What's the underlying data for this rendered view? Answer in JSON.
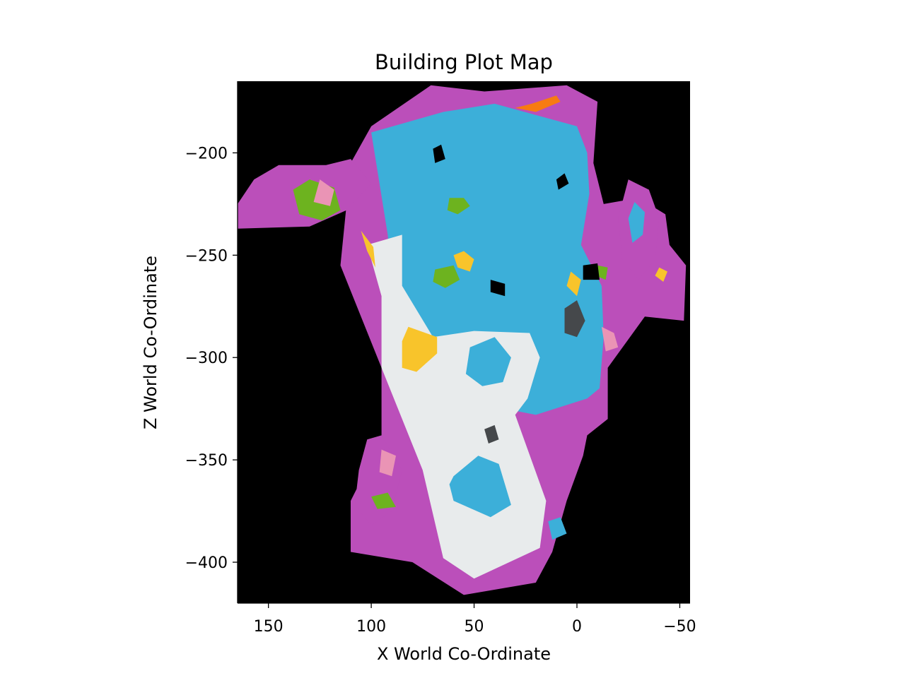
{
  "chart_data": {
    "type": "heatmap",
    "title": "Building Plot Map",
    "xlabel": "X World Co-Ordinate",
    "ylabel": "Z World Co-Ordinate",
    "xlim": [
      165,
      -55
    ],
    "ylim": [
      -420,
      -165
    ],
    "x_inverted": true,
    "grid": false,
    "legend": "none",
    "background_color": "#000000",
    "xticks": [
      {
        "value": 150,
        "label": "150"
      },
      {
        "value": 100,
        "label": "100"
      },
      {
        "value": 50,
        "label": "50"
      },
      {
        "value": 0,
        "label": "0"
      },
      {
        "value": -50,
        "label": "−50"
      }
    ],
    "yticks": [
      {
        "value": -200,
        "label": "−200"
      },
      {
        "value": -250,
        "label": "−250"
      },
      {
        "value": -300,
        "label": "−300"
      },
      {
        "value": -350,
        "label": "−350"
      },
      {
        "value": -400,
        "label": "−400"
      }
    ],
    "categories": [
      {
        "id": "outer-border",
        "color": "#bb4fba"
      },
      {
        "id": "plot-blue",
        "color": "#3cafd9"
      },
      {
        "id": "plot-light-grey",
        "color": "#e8ebec"
      },
      {
        "id": "plot-yellow",
        "color": "#f8c42b"
      },
      {
        "id": "plot-green",
        "color": "#6db31f"
      },
      {
        "id": "plot-pink",
        "color": "#ea94b5"
      },
      {
        "id": "plot-dark-grey",
        "color": "#45484b"
      },
      {
        "id": "plot-orange",
        "color": "#f77b12"
      }
    ],
    "regions": [
      {
        "category": "outer-border",
        "points": [
          [
            71,
            -167
          ],
          [
            45,
            -170
          ],
          [
            5,
            -167
          ],
          [
            -10,
            -175
          ],
          [
            -8,
            -205
          ],
          [
            -13,
            -225
          ],
          [
            -30,
            -222
          ],
          [
            -43,
            -230
          ],
          [
            -45,
            -245
          ],
          [
            -53,
            -255
          ],
          [
            -52,
            -282
          ],
          [
            -33,
            -280
          ],
          [
            -15,
            -305
          ],
          [
            -15,
            -330
          ],
          [
            -5,
            -338
          ],
          [
            -3,
            -348
          ],
          [
            5,
            -370
          ],
          [
            12,
            -395
          ],
          [
            20,
            -410
          ],
          [
            55,
            -416
          ],
          [
            80,
            -400
          ],
          [
            110,
            -395
          ],
          [
            110,
            -370
          ],
          [
            95,
            -340
          ],
          [
            95,
            -305
          ],
          [
            115,
            -255
          ],
          [
            110,
            -205
          ],
          [
            100,
            -187
          ]
        ]
      },
      {
        "category": "outer-border",
        "points": [
          [
            165,
            -237
          ],
          [
            130,
            -236
          ],
          [
            112,
            -228
          ],
          [
            100,
            -215
          ],
          [
            110,
            -203
          ],
          [
            122,
            -206
          ],
          [
            145,
            -206
          ],
          [
            157,
            -213
          ],
          [
            165,
            -225
          ]
        ]
      },
      {
        "category": "plot-blue",
        "points": [
          [
            100,
            -190
          ],
          [
            65,
            -180
          ],
          [
            40,
            -176
          ],
          [
            0,
            -187
          ],
          [
            -5,
            -200
          ],
          [
            -6,
            -220
          ],
          [
            -2,
            -245
          ],
          [
            -12,
            -265
          ],
          [
            -13,
            -290
          ],
          [
            -11,
            -315
          ],
          [
            -5,
            -320
          ],
          [
            20,
            -328
          ],
          [
            35,
            -325
          ],
          [
            52,
            -312
          ],
          [
            60,
            -300
          ],
          [
            85,
            -285
          ],
          [
            90,
            -262
          ],
          [
            92,
            -240
          ]
        ]
      },
      {
        "category": "plot-light-grey",
        "points": [
          [
            102,
            -245
          ],
          [
            85,
            -240
          ],
          [
            85,
            -265
          ],
          [
            70,
            -290
          ],
          [
            50,
            -287
          ],
          [
            23,
            -288
          ],
          [
            18,
            -300
          ],
          [
            24,
            -320
          ],
          [
            30,
            -328
          ],
          [
            15,
            -370
          ],
          [
            18,
            -393
          ],
          [
            50,
            -408
          ],
          [
            65,
            -398
          ],
          [
            75,
            -355
          ],
          [
            95,
            -305
          ],
          [
            95,
            -270
          ]
        ]
      },
      {
        "category": "plot-blue",
        "points": [
          [
            60,
            -358
          ],
          [
            48,
            -348
          ],
          [
            38,
            -352
          ],
          [
            32,
            -372
          ],
          [
            42,
            -378
          ],
          [
            60,
            -370
          ],
          [
            62,
            -362
          ]
        ]
      },
      {
        "category": "plot-blue",
        "points": [
          [
            40,
            -290
          ],
          [
            32,
            -300
          ],
          [
            36,
            -312
          ],
          [
            46,
            -314
          ],
          [
            54,
            -308
          ],
          [
            52,
            -295
          ]
        ]
      },
      {
        "category": "plot-blue",
        "points": [
          [
            14,
            -380
          ],
          [
            8,
            -378
          ],
          [
            5,
            -386
          ],
          [
            12,
            -389
          ]
        ]
      },
      {
        "category": "plot-yellow",
        "points": [
          [
            82,
            -285
          ],
          [
            68,
            -290
          ],
          [
            68,
            -298
          ],
          [
            78,
            -307
          ],
          [
            85,
            -305
          ],
          [
            85,
            -292
          ]
        ]
      },
      {
        "category": "plot-yellow",
        "points": [
          [
            105,
            -238
          ],
          [
            102,
            -248
          ],
          [
            98,
            -256
          ],
          [
            99,
            -246
          ]
        ]
      },
      {
        "category": "plot-yellow",
        "points": [
          [
            55,
            -248
          ],
          [
            50,
            -252
          ],
          [
            52,
            -258
          ],
          [
            58,
            -256
          ],
          [
            60,
            -250
          ]
        ]
      },
      {
        "category": "plot-yellow",
        "points": [
          [
            3,
            -258
          ],
          [
            -2,
            -262
          ],
          [
            0,
            -270
          ],
          [
            5,
            -265
          ]
        ]
      },
      {
        "category": "plot-green",
        "points": [
          [
            69,
            -257
          ],
          [
            60,
            -255
          ],
          [
            57,
            -262
          ],
          [
            64,
            -266
          ],
          [
            70,
            -263
          ]
        ]
      },
      {
        "category": "plot-green",
        "points": [
          [
            62,
            -222
          ],
          [
            55,
            -222
          ],
          [
            52,
            -226
          ],
          [
            58,
            -230
          ],
          [
            63,
            -228
          ]
        ]
      },
      {
        "category": "plot-green",
        "points": [
          [
            138,
            -218
          ],
          [
            130,
            -213
          ],
          [
            118,
            -217
          ],
          [
            115,
            -228
          ],
          [
            124,
            -233
          ],
          [
            135,
            -230
          ]
        ]
      },
      {
        "category": "plot-pink",
        "points": [
          [
            125,
            -213
          ],
          [
            118,
            -218
          ],
          [
            120,
            -226
          ],
          [
            128,
            -224
          ]
        ]
      },
      {
        "category": "plot-dark-grey",
        "points": [
          [
            6,
            -276
          ],
          [
            0,
            -272
          ],
          [
            -4,
            -282
          ],
          [
            0,
            -290
          ],
          [
            6,
            -288
          ]
        ]
      },
      {
        "category": "plot-dark-grey",
        "points": [
          [
            45,
            -335
          ],
          [
            40,
            -333
          ],
          [
            38,
            -340
          ],
          [
            43,
            -342
          ]
        ]
      },
      {
        "category": "plot-orange",
        "points": [
          [
            30,
            -178
          ],
          [
            22,
            -176
          ],
          [
            10,
            -172
          ],
          [
            8,
            -175
          ],
          [
            20,
            -180
          ]
        ]
      },
      {
        "category": "outer-border",
        "points": [
          [
            102,
            -340
          ],
          [
            95,
            -338
          ],
          [
            85,
            -355
          ],
          [
            90,
            -375
          ],
          [
            100,
            -382
          ],
          [
            108,
            -372
          ],
          [
            106,
            -355
          ]
        ]
      },
      {
        "category": "plot-pink",
        "points": [
          [
            95,
            -345
          ],
          [
            88,
            -348
          ],
          [
            90,
            -358
          ],
          [
            96,
            -356
          ]
        ]
      },
      {
        "category": "plot-green",
        "points": [
          [
            100,
            -368
          ],
          [
            92,
            -366
          ],
          [
            88,
            -373
          ],
          [
            97,
            -374
          ]
        ]
      },
      {
        "category": "outer-border",
        "points": [
          [
            -25,
            -213
          ],
          [
            -35,
            -218
          ],
          [
            -40,
            -232
          ],
          [
            -38,
            -252
          ],
          [
            -30,
            -262
          ],
          [
            -22,
            -252
          ],
          [
            -20,
            -232
          ]
        ]
      },
      {
        "category": "plot-blue",
        "points": [
          [
            -28,
            -224
          ],
          [
            -33,
            -229
          ],
          [
            -32,
            -240
          ],
          [
            -27,
            -244
          ],
          [
            -25,
            -232
          ]
        ]
      },
      {
        "category": "plot-pink",
        "points": [
          [
            -12,
            -285
          ],
          [
            -18,
            -288
          ],
          [
            -20,
            -295
          ],
          [
            -14,
            -297
          ]
        ]
      },
      {
        "category": "plot-green",
        "points": [
          [
            -10,
            -255
          ],
          [
            -15,
            -256
          ],
          [
            -14,
            -262
          ],
          [
            -9,
            -260
          ]
        ]
      },
      {
        "category": "plot-yellow",
        "points": [
          [
            -40,
            -256
          ],
          [
            -44,
            -258
          ],
          [
            -42,
            -263
          ],
          [
            -38,
            -260
          ]
        ]
      }
    ],
    "holes": [
      {
        "points": [
          [
            -3,
            -255
          ],
          [
            -10,
            -254
          ],
          [
            -11,
            -262
          ],
          [
            -3,
            -262
          ]
        ]
      },
      {
        "points": [
          [
            70,
            -198
          ],
          [
            66,
            -196
          ],
          [
            64,
            -203
          ],
          [
            69,
            -205
          ]
        ]
      },
      {
        "points": [
          [
            42,
            -262
          ],
          [
            35,
            -264
          ],
          [
            35,
            -270
          ],
          [
            42,
            -268
          ]
        ]
      },
      {
        "points": [
          [
            10,
            -213
          ],
          [
            6,
            -210
          ],
          [
            4,
            -215
          ],
          [
            9,
            -218
          ]
        ]
      }
    ]
  }
}
